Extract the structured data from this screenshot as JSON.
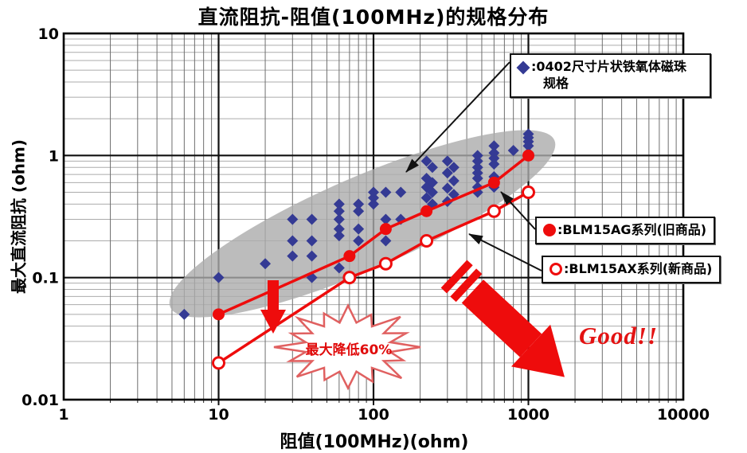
{
  "page": {
    "background": "#ffffff"
  },
  "chart_data": {
    "type": "scatter",
    "title": "直流阻抗-阻值(100MHz)的规格分布",
    "xlabel": "阻值(100MHz)(ohm)",
    "ylabel": "最大直流阻抗 (ohm)",
    "x_scale": "log",
    "y_scale": "log",
    "xlim": [
      1,
      10000
    ],
    "ylim": [
      0.01,
      10
    ],
    "x_ticks": [
      "1",
      "10",
      "100",
      "1000",
      "10000"
    ],
    "y_ticks": [
      "10",
      "1",
      "0.1",
      "0.01"
    ],
    "grid": "log major and minor, boxed frame",
    "legend_position": "right overlay boxes",
    "colors": {
      "diamond_blue": "#343a94",
      "line_red": "#ee0c0c",
      "highlight_gray": "#ababab",
      "burst_red": "#e00a0a"
    },
    "series": [
      {
        "name": "0402尺寸片状铁氧体磁珠规格",
        "type": "scatter",
        "marker": "diamond",
        "color": "#343a94",
        "points": [
          [
            6,
            0.05
          ],
          [
            10,
            0.1
          ],
          [
            20,
            0.13
          ],
          [
            30,
            0.3
          ],
          [
            30,
            0.2
          ],
          [
            30,
            0.15
          ],
          [
            40,
            0.3
          ],
          [
            40,
            0.2
          ],
          [
            40,
            0.15
          ],
          [
            40,
            0.1
          ],
          [
            60,
            0.4
          ],
          [
            60,
            0.35
          ],
          [
            60,
            0.3
          ],
          [
            60,
            0.25
          ],
          [
            60,
            0.22
          ],
          [
            60,
            0.12
          ],
          [
            80,
            0.4
          ],
          [
            80,
            0.35
          ],
          [
            80,
            0.25
          ],
          [
            80,
            0.2
          ],
          [
            100,
            0.5
          ],
          [
            100,
            0.45
          ],
          [
            100,
            0.4
          ],
          [
            120,
            0.5
          ],
          [
            120,
            0.3
          ],
          [
            120,
            0.2
          ],
          [
            150,
            0.5
          ],
          [
            150,
            0.3
          ],
          [
            220,
            0.9
          ],
          [
            220,
            0.65
          ],
          [
            220,
            0.55
          ],
          [
            220,
            0.45
          ],
          [
            240,
            0.8
          ],
          [
            240,
            0.6
          ],
          [
            240,
            0.5
          ],
          [
            240,
            0.4
          ],
          [
            300,
            0.9
          ],
          [
            300,
            0.72
          ],
          [
            300,
            0.54
          ],
          [
            300,
            0.42
          ],
          [
            330,
            0.8
          ],
          [
            330,
            0.62
          ],
          [
            330,
            0.48
          ],
          [
            470,
            1.0
          ],
          [
            470,
            0.9
          ],
          [
            470,
            0.8
          ],
          [
            470,
            0.72
          ],
          [
            470,
            0.65
          ],
          [
            470,
            0.55
          ],
          [
            470,
            0.5
          ],
          [
            600,
            1.2
          ],
          [
            600,
            1.05
          ],
          [
            600,
            0.95
          ],
          [
            600,
            0.85
          ],
          [
            600,
            0.67
          ],
          [
            600,
            0.55
          ],
          [
            800,
            1.1
          ],
          [
            1000,
            1.5
          ],
          [
            1000,
            1.4
          ],
          [
            1000,
            1.3
          ],
          [
            1000,
            1.2
          ],
          [
            1000,
            1.05
          ]
        ]
      },
      {
        "name": "BLM15AG系列(旧商品)",
        "type": "line",
        "marker": "filled-circle",
        "color": "#ee0c0c",
        "points": [
          [
            10,
            0.05
          ],
          [
            70,
            0.15
          ],
          [
            120,
            0.25
          ],
          [
            220,
            0.35
          ],
          [
            600,
            0.6
          ],
          [
            1000,
            1.0
          ]
        ]
      },
      {
        "name": "BLM15AX系列(新商品)",
        "type": "line",
        "marker": "open-circle",
        "color": "#ee0c0c",
        "points": [
          [
            10,
            0.02
          ],
          [
            70,
            0.1
          ],
          [
            120,
            0.13
          ],
          [
            220,
            0.2
          ],
          [
            600,
            0.35
          ],
          [
            1000,
            0.5
          ]
        ]
      }
    ],
    "legend": [
      {
        "marker": "blue-diamond",
        "label_line1": ":0402尺寸片状铁氧体磁珠",
        "label_line2": "规格"
      },
      {
        "marker": "red-filled-circle",
        "label": ":BLM15AG系列(旧商品)"
      },
      {
        "marker": "red-open-circle",
        "label": ":BLM15AX系列(新商品)"
      }
    ],
    "annotations": {
      "burst_label": "最大降低60%",
      "good_label": "Good!!"
    }
  }
}
